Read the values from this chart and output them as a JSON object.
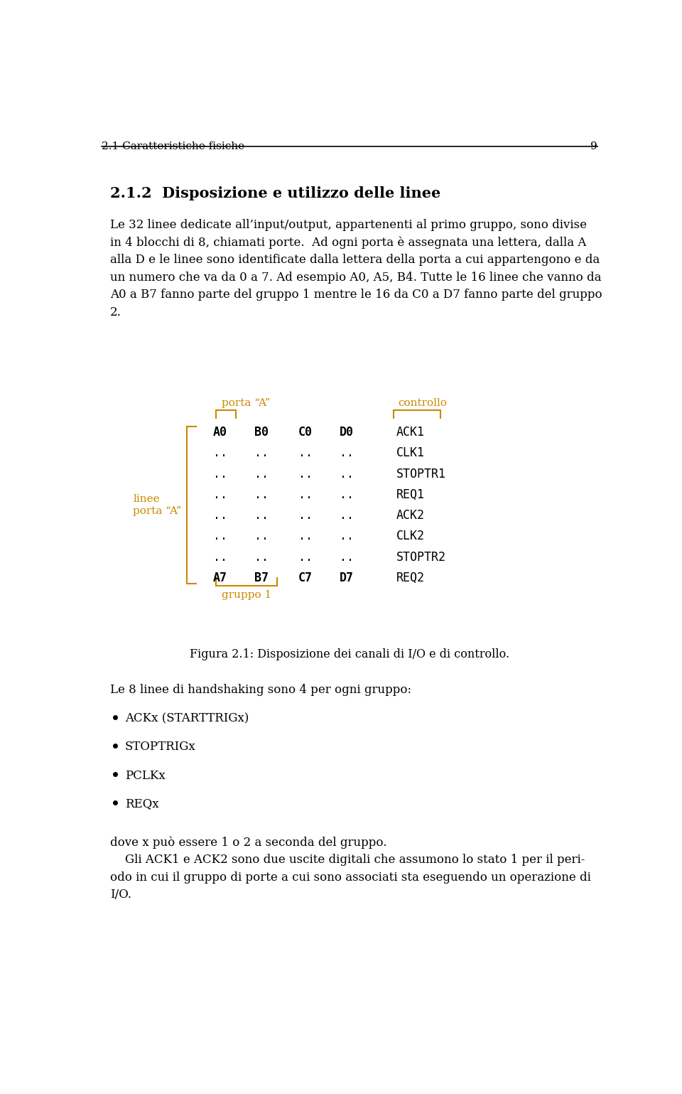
{
  "bg_color": "#ffffff",
  "text_color": "#000000",
  "orange_color": "#cc8800",
  "header_line_color": "#000000",
  "header_text": "2.1 Caratteristiche fisiche",
  "header_page": "9",
  "section_title": "2.1.2  Disposizione e utilizzo delle linee",
  "para1_lines": [
    "Le 32 linee dedicate all’input/output, appartenenti al primo gruppo, sono divise",
    "in 4 blocchi di 8, chiamati porte.  Ad ogni porta è assegnata una lettera, dalla A",
    "alla D e le linee sono identificate dalla lettera della porta a cui appartengono e da",
    "un numero che va da 0 a 7. Ad esempio A0, A5, B4. Tutte le 16 linee che vanno da",
    "A0 a B7 fanno parte del gruppo 1 mentre le 16 da C0 a D7 fanno parte del gruppo",
    "2."
  ],
  "diagram_porta_a_label": "porta “A”",
  "diagram_linee_label": "linee\nporta “A”",
  "diagram_gruppo1_label": "gruppo 1",
  "diagram_controllo_label": "controllo",
  "diagram_columns": [
    "A0",
    "B0",
    "C0",
    "D0"
  ],
  "diagram_columns_bottom": [
    "A7",
    "B7",
    "C7",
    "D7"
  ],
  "diagram_control_signals": [
    "ACK1",
    "CLK1",
    "STOPTR1",
    "REQ1",
    "ACK2",
    "CLK2",
    "STOPTR2",
    "REQ2"
  ],
  "figure_caption": "Figura 2.1: Disposizione dei canali di I/O e di controllo.",
  "para2": "Le 8 linee di handshaking sono 4 per ogni gruppo:",
  "bullet_items": [
    "ACKx (STARTTRIGx)",
    "STOPTRIGx",
    "PCLKx",
    "REQx"
  ],
  "para3_lines": [
    "dove x può essere 1 o 2 a seconda del gruppo.",
    "    Gli ACK1 e ACK2 sono due uscite digitali che assumono lo stato 1 per il peri-",
    "odo in cui il gruppo di porte a cui sono associati sta eseguendo un operazione di",
    "I/O."
  ]
}
